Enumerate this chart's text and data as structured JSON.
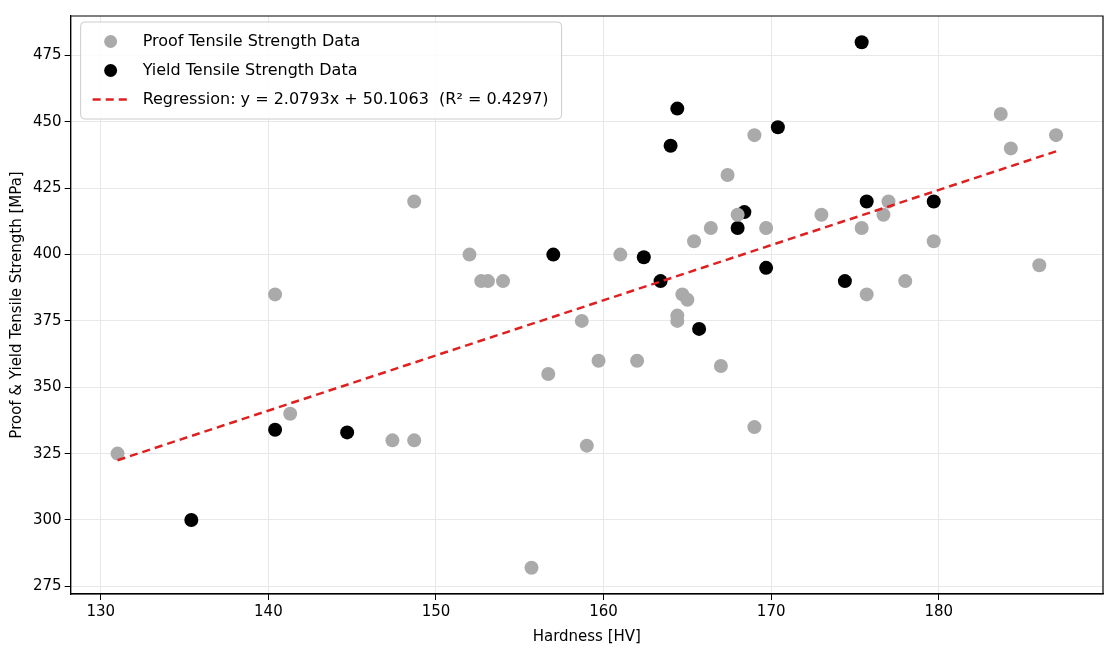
{
  "chart_data": {
    "type": "scatter",
    "xlabel": "Hardness [HV]",
    "ylabel": "Proof & Yield Tensile Strength [MPa]",
    "xlim": [
      128.2,
      189.8
    ],
    "xticks": [
      130,
      140,
      150,
      160,
      170,
      180
    ],
    "ylim": [
      272.1,
      489.9
    ],
    "yticks": [
      275,
      300,
      325,
      350,
      375,
      400,
      425,
      450,
      475
    ],
    "grid": true,
    "legend": "top left",
    "marker": "circle",
    "series": [
      {
        "name": "Proof Tensile Strength Data",
        "color": "#aaaaaa",
        "x": [
          131,
          140.4,
          141.3,
          147.4,
          148.7,
          148.7,
          152,
          152.7,
          153.1,
          154,
          155.7,
          156.7,
          158.7,
          159,
          159.7,
          161,
          162,
          164.4,
          164.4,
          164.7,
          165,
          165.4,
          166.4,
          167,
          167.4,
          168,
          169,
          169,
          169.7,
          173,
          175.4,
          175.7,
          176.7,
          177,
          178,
          179.7,
          183.7,
          184.3,
          186,
          187
        ],
        "values": [
          325,
          385,
          340,
          330,
          420,
          330,
          400,
          390,
          390,
          390,
          282,
          355,
          375,
          328,
          360,
          400,
          360,
          377,
          375,
          385,
          383,
          405,
          410,
          358,
          430,
          415,
          445,
          335,
          410,
          415,
          410,
          385,
          415,
          420,
          390,
          405,
          453,
          440,
          396,
          445
        ]
      },
      {
        "name": "Yield Tensile Strength Data",
        "color": "#000000",
        "x": [
          135.4,
          140.4,
          144.7,
          157,
          162.4,
          163.4,
          164,
          164.4,
          165.7,
          168,
          168.4,
          169.7,
          170.4,
          174.4,
          175.4,
          175.7,
          179.7
        ],
        "values": [
          300,
          334,
          333,
          400,
          399,
          390,
          441,
          455,
          372,
          410,
          416,
          395,
          448,
          390,
          480,
          420,
          420
        ]
      },
      {
        "name": "Regression: y = 2.0793x + 50.1063  (R² = 0.4297)",
        "type": "line",
        "color": "#e02020",
        "line_style": "dashed",
        "marker": "none",
        "x": [
          131,
          187
        ],
        "values": [
          322.5,
          438.9
        ]
      }
    ]
  }
}
